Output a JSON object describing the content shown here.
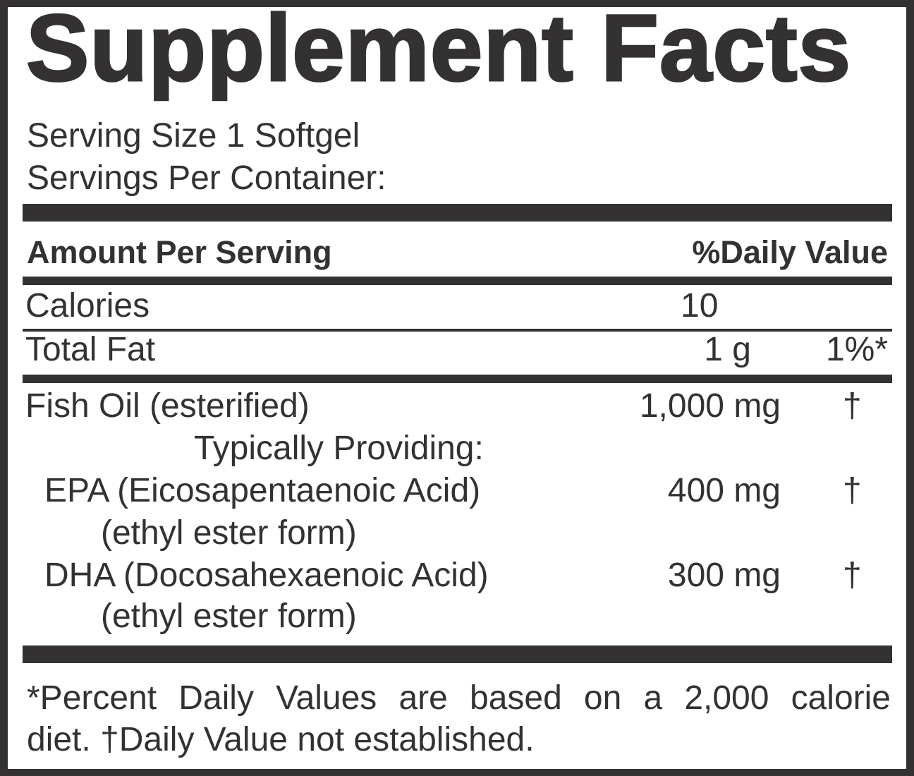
{
  "title": "Supplement Facts",
  "serving_size": "Serving Size 1 Softgel",
  "servings_per_container": "Servings Per Container:",
  "header": {
    "amount": "Amount Per Serving",
    "dv": "%Daily Value"
  },
  "rows": [
    {
      "name": "Calories",
      "amount": "10",
      "dv": ""
    },
    {
      "name": "Total Fat",
      "amount": "1 g",
      "dv": "1%*"
    },
    {
      "name": "Fish Oil (esterified)",
      "amount": "1,000 mg",
      "dv": "†"
    },
    {
      "name": "Typically Providing:",
      "amount": "",
      "dv": ""
    },
    {
      "name": "EPA (Eicosapentaenoic Acid)",
      "sub": "(ethyl ester form)",
      "amount": "400 mg",
      "dv": "†"
    },
    {
      "name": "DHA (Docosahexaenoic Acid)",
      "sub": "(ethyl ester form)",
      "amount": "300 mg",
      "dv": "†"
    }
  ],
  "footer": {
    "line1": "*Percent Daily Values are based on a 2,000 calorie",
    "line2": "diet. †Daily Value not established."
  },
  "colors": {
    "ink": "#333132",
    "background": "#ffffff"
  }
}
